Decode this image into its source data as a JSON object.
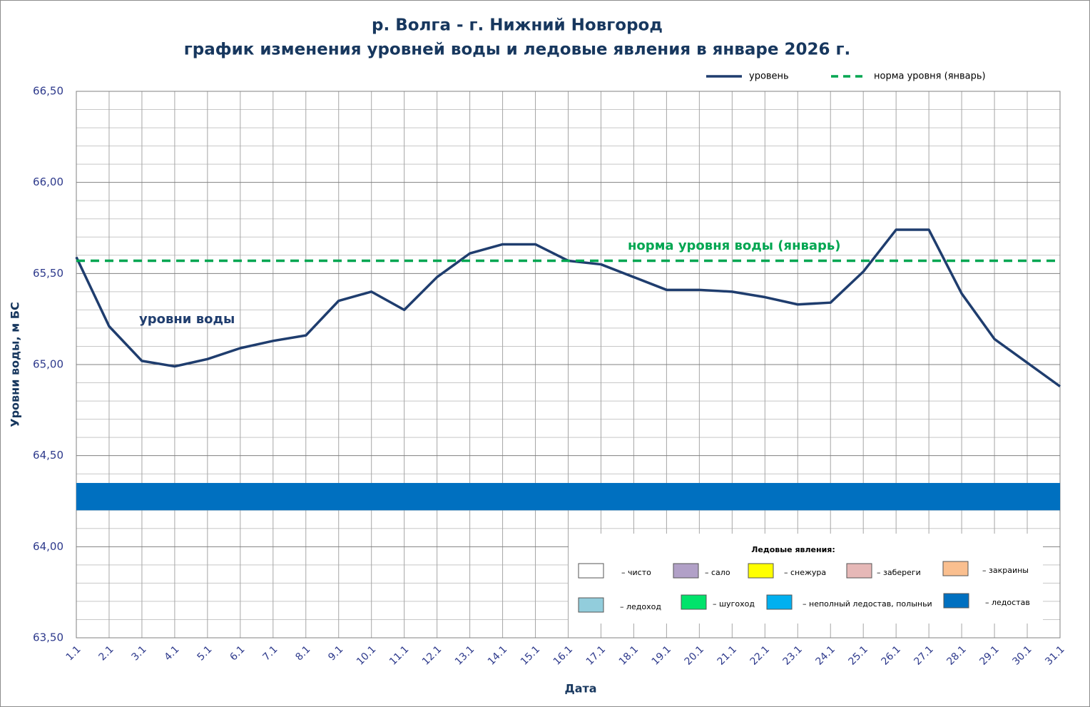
{
  "chart_data": {
    "type": "line",
    "title": "р. Волга - г. Нижний Новгород",
    "subtitle": "график изменения уровней воды и ледовые явления в январе 2026 г.",
    "x_label": "Дата",
    "y_label": "Уровни воды, м БС",
    "categories": [
      "1.1",
      "2.1",
      "3.1",
      "4.1",
      "5.1",
      "6.1",
      "7.1",
      "8.1",
      "9.1",
      "10.1",
      "11.1",
      "12.1",
      "13.1",
      "14.1",
      "15.1",
      "16.1",
      "17.1",
      "18.1",
      "19.1",
      "20.1",
      "21.1",
      "22.1",
      "23.1",
      "24.1",
      "25.1",
      "26.1",
      "27.1",
      "28.1",
      "29.1",
      "30.1",
      "31.1"
    ],
    "series": [
      {
        "name": "уровень",
        "color": "#1f3d6e",
        "values": [
          65.59,
          65.21,
          65.02,
          64.99,
          65.03,
          65.09,
          65.13,
          65.16,
          65.35,
          65.4,
          65.3,
          65.48,
          65.61,
          65.66,
          65.66,
          65.57,
          65.55,
          65.48,
          65.41,
          65.41,
          65.4,
          65.37,
          65.33,
          65.34,
          65.51,
          65.74,
          65.74,
          65.39,
          65.14,
          65.01,
          64.88
        ]
      },
      {
        "name": "норма уровня (январь)",
        "color": "#00a651",
        "dashed": true,
        "constant": 65.57
      }
    ],
    "annotations": [
      {
        "text": "уровни воды",
        "color": "#1f3d6e"
      },
      {
        "text": "норма уровня воды  (январь)",
        "color": "#00a651"
      }
    ],
    "ice_band": {
      "color": "#0070c0",
      "range": [
        64.2,
        64.35
      ]
    },
    "ice_legend": {
      "title": "Ледовые явления:",
      "items": [
        {
          "label": "– чисто",
          "color": "#ffffff"
        },
        {
          "label": "– сало",
          "color": "#b1a0c7"
        },
        {
          "label": "– снежура",
          "color": "#ffff00"
        },
        {
          "label": "– забереги",
          "color": "#e6b8b7"
        },
        {
          "label": "– закраины",
          "color": "#fabf8f"
        },
        {
          "label": "– ледоход",
          "color": "#92cddc"
        },
        {
          "label": "– шугоход",
          "color": "#00e36b"
        },
        {
          "label": "– неполный ледостав, полыньи",
          "color": "#00b0f0"
        },
        {
          "label": "– ледостав",
          "color": "#0070c0"
        }
      ]
    },
    "ylim": [
      63.5,
      66.5
    ],
    "yticks": [
      {
        "value": 63.5,
        "label": "63,50"
      },
      {
        "value": 64,
        "label": "64,00"
      },
      {
        "value": 64.5,
        "label": "64,50"
      },
      {
        "value": 65,
        "label": "65,00"
      },
      {
        "value": 65.5,
        "label": "65,50"
      },
      {
        "value": 66,
        "label": "66,00"
      },
      {
        "value": 66.5,
        "label": "66,50"
      }
    ],
    "minor_yticks": [
      63.6,
      63.7,
      63.8,
      63.9,
      64.1,
      64.2,
      64.3,
      64.4,
      64.6,
      64.7,
      64.8,
      64.9,
      65.1,
      65.2,
      65.3,
      65.4,
      65.6,
      65.7,
      65.8,
      65.9,
      66.1,
      66.2,
      66.3,
      66.4
    ],
    "grid": true
  }
}
